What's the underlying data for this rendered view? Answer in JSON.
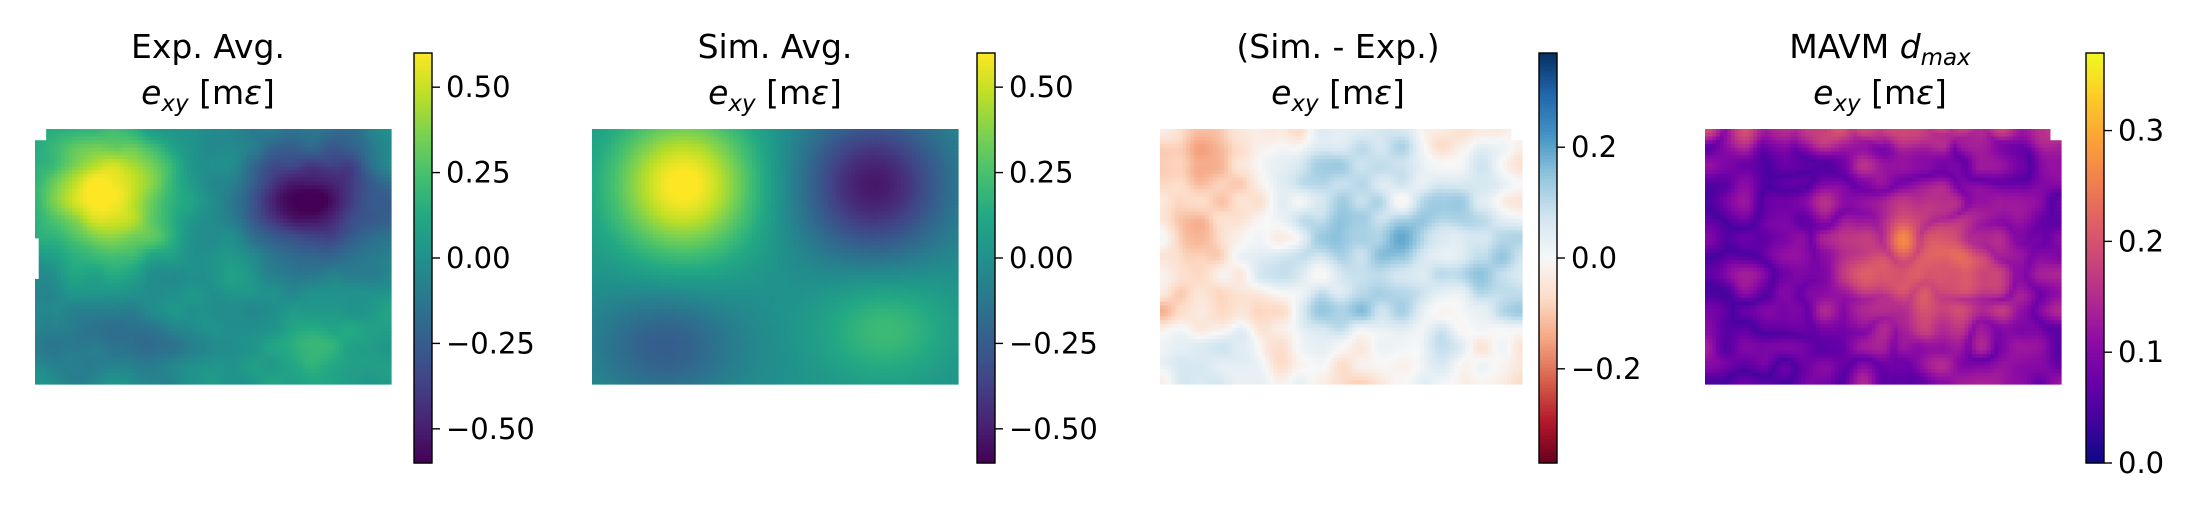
{
  "chart_data": [
    {
      "type": "heatmap",
      "title": "Exp. Avg.",
      "title_line2": {
        "symbol": "e",
        "subscript": "xy",
        "unit": " [m",
        "unit_symbol": "ε",
        "unit_close": "]"
      },
      "colormap": "viridis",
      "colorbar": {
        "range": [
          -0.6,
          0.6
        ],
        "ticks": [
          0.5,
          0.25,
          0.0,
          -0.25,
          -0.5
        ],
        "tick_labels": [
          "0.50",
          "0.25",
          "0.00",
          "−0.25",
          "−0.50"
        ]
      },
      "field": {
        "description_mode": "noisy",
        "blobs": [
          {
            "cx": 0.2,
            "cy": 0.25,
            "sx": 0.13,
            "sy": 0.16,
            "amp": 0.62
          },
          {
            "cx": 0.78,
            "cy": 0.27,
            "sx": 0.13,
            "sy": 0.15,
            "amp": -0.62
          },
          {
            "cx": 0.22,
            "cy": 0.8,
            "sx": 0.14,
            "sy": 0.12,
            "amp": -0.18
          },
          {
            "cx": 0.8,
            "cy": 0.82,
            "sx": 0.14,
            "sy": 0.12,
            "amp": 0.15
          }
        ],
        "noise": 0.12
      }
    },
    {
      "type": "heatmap",
      "title": "Sim. Avg.",
      "title_line2": {
        "symbol": "e",
        "subscript": "xy",
        "unit": " [m",
        "unit_symbol": "ε",
        "unit_close": "]"
      },
      "colormap": "viridis",
      "colorbar": {
        "range": [
          -0.6,
          0.6
        ],
        "ticks": [
          0.5,
          0.25,
          0.0,
          -0.25,
          -0.5
        ],
        "tick_labels": [
          "0.50",
          "0.25",
          "0.00",
          "−0.25",
          "−0.50"
        ]
      },
      "field": {
        "description_mode": "smooth",
        "blobs": [
          {
            "cx": 0.25,
            "cy": 0.22,
            "sx": 0.14,
            "sy": 0.2,
            "amp": 0.62
          },
          {
            "cx": 0.77,
            "cy": 0.22,
            "sx": 0.14,
            "sy": 0.2,
            "amp": -0.52
          },
          {
            "cx": 0.2,
            "cy": 0.85,
            "sx": 0.14,
            "sy": 0.15,
            "amp": -0.25
          },
          {
            "cx": 0.8,
            "cy": 0.78,
            "sx": 0.13,
            "sy": 0.15,
            "amp": 0.22
          }
        ],
        "noise": 0.0
      }
    },
    {
      "type": "heatmap",
      "title": "(Sim. - Exp.)",
      "title_line2": {
        "symbol": "e",
        "subscript": "xy",
        "unit": " [m",
        "unit_symbol": "ε",
        "unit_close": "]"
      },
      "colormap": "RdBu",
      "colorbar": {
        "range": [
          -0.37,
          0.37
        ],
        "ticks": [
          0.2,
          0.0,
          -0.2
        ],
        "tick_labels": [
          "0.2",
          "0.0",
          "−0.2"
        ]
      },
      "field": {
        "description_mode": "difference",
        "blobs": [
          {
            "cx": 0.65,
            "cy": 0.45,
            "sx": 0.22,
            "sy": 0.25,
            "amp": 0.12
          },
          {
            "cx": 0.1,
            "cy": 0.4,
            "sx": 0.12,
            "sy": 0.25,
            "amp": -0.08
          }
        ],
        "noise": 0.14
      }
    },
    {
      "type": "heatmap",
      "title": "MAVM ",
      "title_math": {
        "symbol": "d",
        "subscript": "max"
      },
      "title_line2": {
        "symbol": "e",
        "subscript": "xy",
        "unit": " [m",
        "unit_symbol": "ε",
        "unit_close": "]"
      },
      "colormap": "plasma",
      "colorbar": {
        "range": [
          0.0,
          0.37
        ],
        "ticks": [
          0.3,
          0.2,
          0.1,
          0.0
        ],
        "tick_labels": [
          "0.3",
          "0.2",
          "0.1",
          "0.0"
        ]
      },
      "field": {
        "description_mode": "magnitude",
        "blobs": [
          {
            "cx": 0.62,
            "cy": 0.55,
            "sx": 0.2,
            "sy": 0.22,
            "amp": 0.15
          },
          {
            "cx": 0.5,
            "cy": 0.0,
            "sx": 0.4,
            "sy": 0.05,
            "amp": 0.12
          }
        ],
        "base": 0.04,
        "noise": 0.1
      }
    }
  ]
}
